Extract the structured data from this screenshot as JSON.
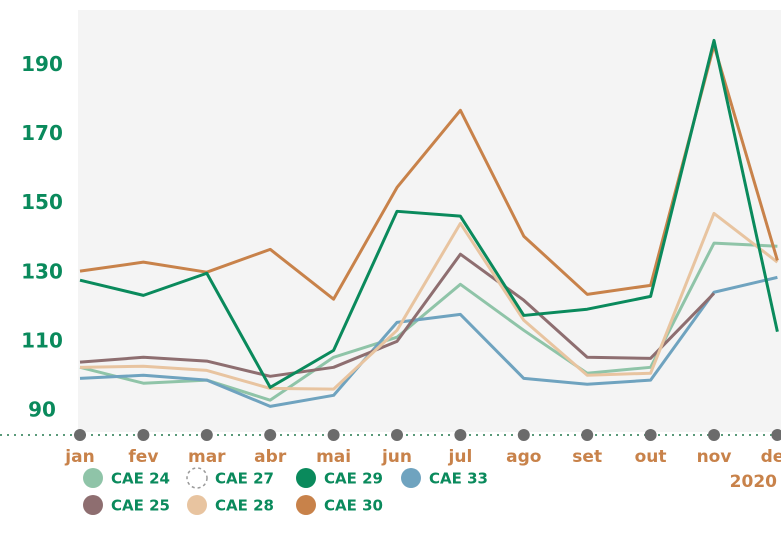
{
  "chart_data": {
    "type": "line",
    "categories": [
      "jan",
      "fev",
      "mar",
      "abr",
      "mai",
      "jun",
      "jul",
      "ago",
      "set",
      "out",
      "nov",
      "dez"
    ],
    "year_label": "2020",
    "ylim": [
      84,
      206
    ],
    "yticks": [
      90,
      110,
      130,
      150,
      170,
      190
    ],
    "series": [
      {
        "name": "CAE 24",
        "color": "#8fc4a8",
        "values": [
          102.7,
          98.1,
          99,
          93.2,
          105.6,
          111.4,
          126.7,
          113.4,
          101,
          102.7,
          138.6,
          137.7
        ]
      },
      {
        "name": "CAE 27",
        "color": "#9a9a9a",
        "dashed": true,
        "values": [
          null,
          null,
          null,
          null,
          null,
          null,
          null,
          null,
          null,
          null,
          null,
          null
        ]
      },
      {
        "name": "CAE 29",
        "color": "#0a8a5c",
        "values": [
          127.9,
          123.5,
          129.9,
          96.9,
          107.6,
          147.8,
          146.4,
          117.7,
          119.5,
          123.2,
          197.2,
          113
        ]
      },
      {
        "name": "CAE 33",
        "color": "#6fa3bf",
        "values": [
          99.5,
          100.4,
          99,
          91.4,
          94.6,
          115.7,
          118,
          99.5,
          97.8,
          99,
          124.4,
          128.7
        ]
      },
      {
        "name": "CAE 25",
        "color": "#8e6e70",
        "values": [
          104.2,
          105.6,
          104.5,
          100.1,
          102.7,
          110.2,
          135.4,
          122.1,
          105.6,
          105.3,
          124.1,
          null
        ]
      },
      {
        "name": "CAE 28",
        "color": "#e8c4a0",
        "values": [
          102.7,
          103,
          101.8,
          96.6,
          96.4,
          113.4,
          144.3,
          116.3,
          100.4,
          101,
          147.2,
          133.1
        ]
      },
      {
        "name": "CAE 30",
        "color": "#c8824a",
        "values": [
          130.5,
          133.1,
          130.2,
          136.8,
          122.4,
          154.7,
          177,
          140.6,
          123.8,
          126.4,
          195.8,
          133.6
        ]
      }
    ]
  }
}
